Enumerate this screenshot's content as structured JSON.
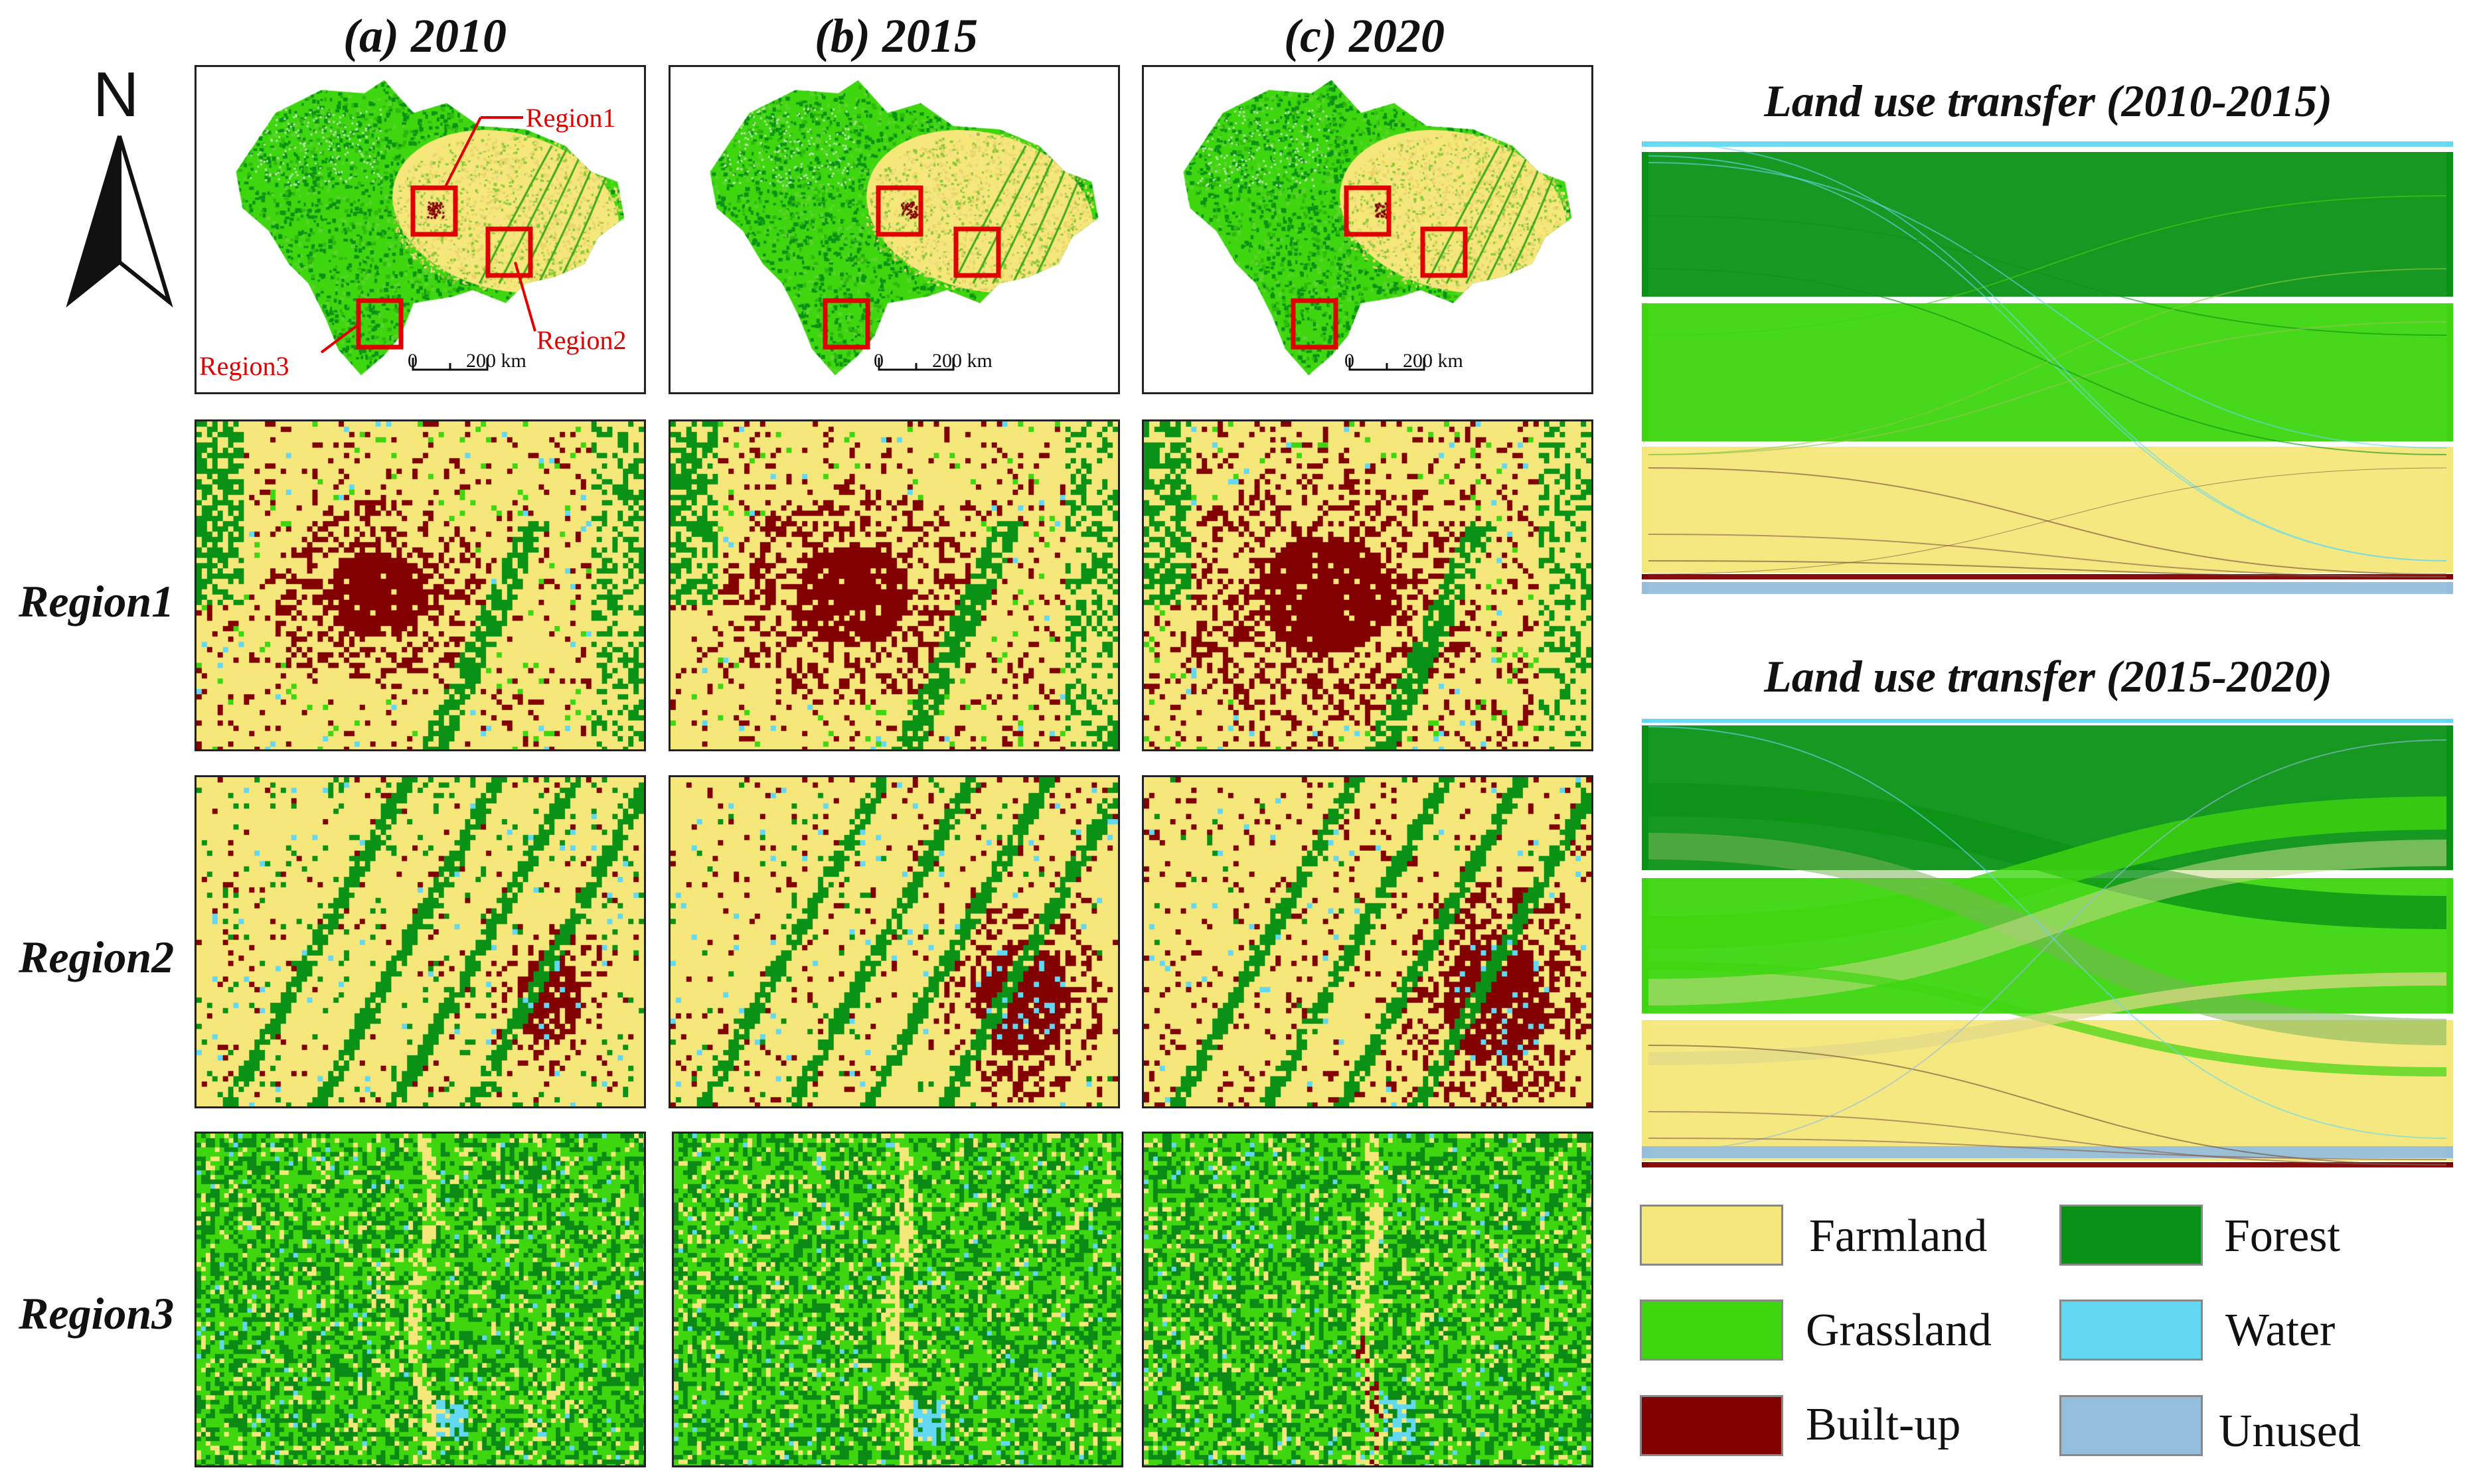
{
  "columns": [
    {
      "label": "(a) 2010"
    },
    {
      "label": "(b) 2015"
    },
    {
      "label": "(c) 2020"
    }
  ],
  "rows": [
    {
      "label": "Region1"
    },
    {
      "label": "Region2"
    },
    {
      "label": "Region3"
    }
  ],
  "north_arrow": {
    "letter": "N"
  },
  "overview_annotations": {
    "region1": "Region1",
    "region2": "Region2",
    "region3": "Region3",
    "scalebar_zero": "0",
    "scalebar_value": "200 km"
  },
  "sankey": [
    {
      "title": "Land use transfer (2010-2015)"
    },
    {
      "title": "Land use transfer (2015-2020)"
    }
  ],
  "legend": [
    {
      "key": "farmland",
      "label": "Farmland",
      "color": "#F6E77A"
    },
    {
      "key": "forest",
      "label": "Forest",
      "color": "#0A9216"
    },
    {
      "key": "grassland",
      "label": "Grassland",
      "color": "#3ED60F"
    },
    {
      "key": "water",
      "label": "Water",
      "color": "#63D8F2"
    },
    {
      "key": "builtup",
      "label": "Built-up",
      "color": "#820000"
    },
    {
      "key": "unused",
      "label": "Unused",
      "color": "#95BEDC"
    }
  ]
}
